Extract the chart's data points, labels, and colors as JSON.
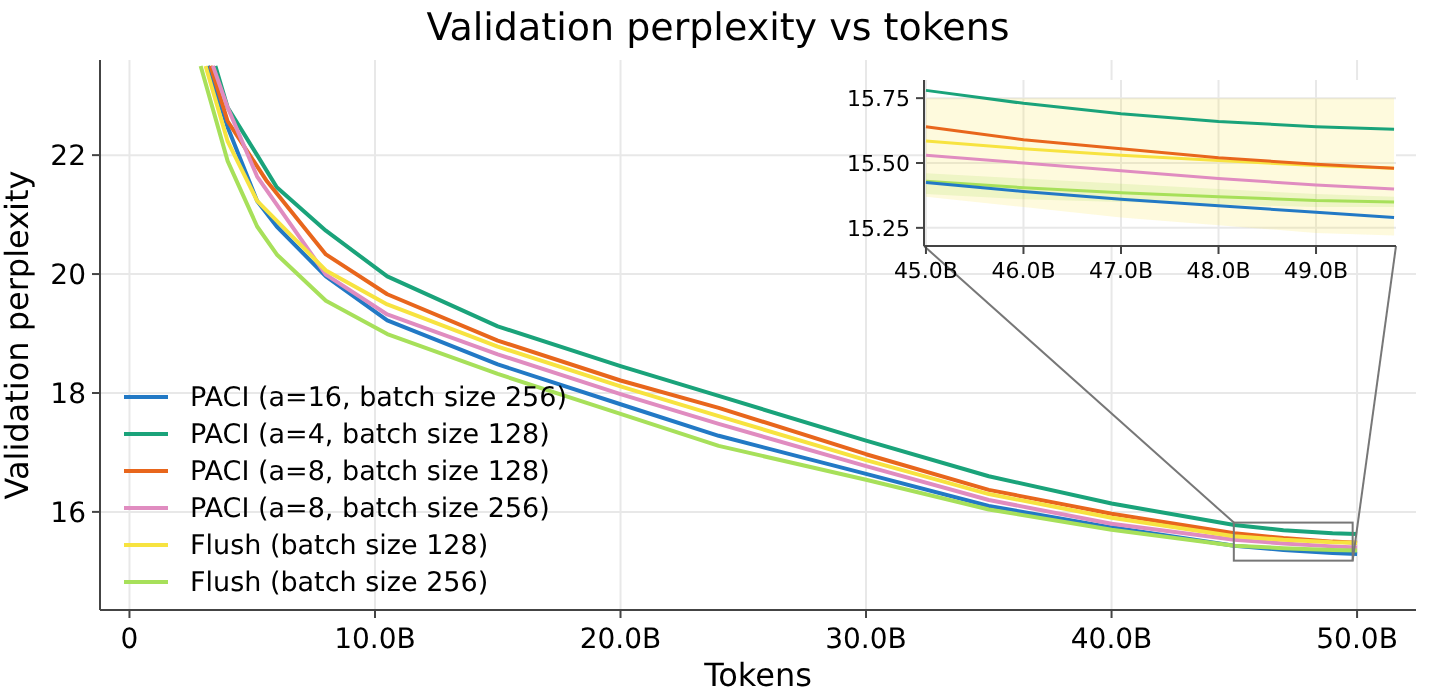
{
  "chart_data": [
    {
      "type": "line",
      "title": "Validation perplexity vs tokens",
      "xlabel": "Tokens",
      "ylabel": "Validation perplexity",
      "xlim": [
        -1.2,
        52.4
      ],
      "ylim": [
        14.35,
        23.6
      ],
      "xticks": [
        0,
        {
          "value": 10,
          "label": "10.0B"
        },
        {
          "value": 20,
          "label": "20.0B"
        },
        {
          "value": 30,
          "label": "30.0B"
        },
        {
          "value": 40,
          "label": "40.0B"
        },
        {
          "value": 50,
          "label": "50.0B"
        }
      ],
      "yticks": [
        16,
        18,
        20,
        22
      ],
      "grid": true,
      "legend": "bottom left",
      "line_style": "solid",
      "marker": "none",
      "series": [
        {
          "name": "PACI (a=16, batch size 256)",
          "color": "#2279c5",
          "x": [
            3.2,
            4,
            5.2,
            6,
            8,
            10.5,
            15,
            20,
            24,
            30,
            35,
            40,
            45,
            47,
            49,
            50
          ],
          "values": [
            23.5,
            22.47,
            21.23,
            20.8,
            19.96,
            19.22,
            18.48,
            17.81,
            17.28,
            16.64,
            16.1,
            15.74,
            15.43,
            15.36,
            15.31,
            15.29
          ]
        },
        {
          "name": "PACI (a=4, batch size 128)",
          "color": "#1aa37a",
          "x": [
            3.5,
            4,
            5.2,
            6,
            8,
            10.5,
            15,
            20,
            24,
            30,
            35,
            40,
            45,
            47,
            49,
            50
          ],
          "values": [
            23.5,
            22.8,
            22.0,
            21.46,
            20.73,
            19.96,
            19.12,
            18.45,
            17.95,
            17.2,
            16.6,
            16.14,
            15.78,
            15.69,
            15.64,
            15.63
          ]
        },
        {
          "name": "PACI (a=8, batch size 128)",
          "color": "#e8661c",
          "x": [
            3.3,
            4,
            5.6,
            8,
            10.5,
            15,
            20,
            24,
            30,
            35,
            40,
            45,
            47,
            49,
            50
          ],
          "values": [
            23.5,
            22.57,
            21.56,
            20.33,
            19.66,
            18.88,
            18.21,
            17.75,
            16.97,
            16.37,
            15.97,
            15.64,
            15.56,
            15.5,
            15.48
          ]
        },
        {
          "name": "PACI (a=8, batch size 256)",
          "color": "#e08cc0",
          "x": [
            3.4,
            4,
            5.2,
            8,
            10.5,
            15,
            20,
            24,
            30,
            35,
            40,
            45,
            47,
            49,
            50
          ],
          "values": [
            23.5,
            22.8,
            21.64,
            19.99,
            19.32,
            18.65,
            17.98,
            17.48,
            16.77,
            16.2,
            15.8,
            15.53,
            15.47,
            15.42,
            15.4
          ]
        },
        {
          "name": "Flush (batch size 128)",
          "color": "#f7e340",
          "x": [
            3.1,
            4,
            5.2,
            8,
            10.5,
            15,
            20,
            24,
            30,
            35,
            40,
            45,
            47,
            49,
            50
          ],
          "values": [
            23.5,
            22.23,
            21.23,
            20.06,
            19.49,
            18.78,
            18.11,
            17.61,
            16.87,
            16.3,
            15.9,
            15.59,
            15.53,
            15.49,
            15.48
          ]
        },
        {
          "name": "Flush (batch size 256)",
          "color": "#a7e05a",
          "x": [
            2.9,
            4,
            5.2,
            6,
            8,
            10.5,
            15,
            20,
            24,
            30,
            35,
            40,
            45,
            47,
            49,
            50
          ],
          "values": [
            23.5,
            21.9,
            20.8,
            20.33,
            19.55,
            18.99,
            18.32,
            17.65,
            17.11,
            16.54,
            16.04,
            15.7,
            15.43,
            15.39,
            15.36,
            15.35
          ]
        }
      ]
    },
    {
      "type": "line",
      "xlim": [
        44.98,
        49.82
      ],
      "ylim": [
        15.18,
        15.82
      ],
      "xticks": [
        {
          "value": 45,
          "label": "45.0B"
        },
        {
          "value": 46,
          "label": "46.0B"
        },
        {
          "value": 47,
          "label": "47.0B"
        },
        {
          "value": 48,
          "label": "48.0B"
        },
        {
          "value": 49,
          "label": "49.0B"
        }
      ],
      "yticks": [
        {
          "value": 15.25,
          "label": "15.25"
        },
        {
          "value": 15.5,
          "label": "15.50"
        },
        {
          "value": 15.75,
          "label": "15.75"
        }
      ],
      "grid": true,
      "line_style": "solid",
      "marker": "none",
      "x": [
        45,
        46,
        47,
        48,
        49,
        49.8
      ],
      "series": [
        {
          "color": "#f7e340",
          "values": [
            15.585,
            15.555,
            15.53,
            15.51,
            15.49,
            15.48
          ],
          "lower": [
            15.37,
            15.33,
            15.29,
            15.26,
            15.23,
            15.22
          ],
          "upper": [
            15.75,
            15.75,
            15.75,
            15.75,
            15.75,
            15.75
          ]
        },
        {
          "color": "#a7e05a",
          "values": [
            15.43,
            15.405,
            15.385,
            15.37,
            15.355,
            15.35
          ],
          "lower": [
            15.38,
            15.36,
            15.35,
            15.34,
            15.33,
            15.33
          ],
          "upper": [
            15.46,
            15.44,
            15.42,
            15.4,
            15.38,
            15.37
          ]
        },
        {
          "color": "#2279c5",
          "values": [
            15.425,
            15.39,
            15.36,
            15.335,
            15.31,
            15.29
          ]
        },
        {
          "color": "#1aa37a",
          "values": [
            15.78,
            15.73,
            15.69,
            15.66,
            15.64,
            15.63
          ]
        },
        {
          "color": "#e8661c",
          "values": [
            15.64,
            15.59,
            15.555,
            15.52,
            15.495,
            15.48
          ]
        },
        {
          "color": "#e08cc0",
          "values": [
            15.53,
            15.5,
            15.47,
            15.44,
            15.415,
            15.4
          ]
        }
      ]
    }
  ]
}
